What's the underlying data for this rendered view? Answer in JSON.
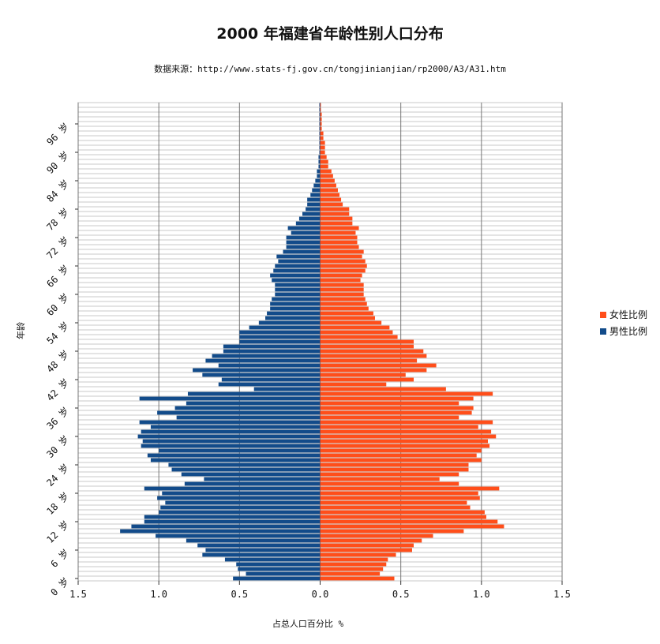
{
  "chart_data": {
    "type": "bar",
    "orientation": "horizontal",
    "title": "2000 年福建省年龄性别人口分布",
    "subtitle": "数据来源：http://www.stats-fj.gov.cn/tongjinianjian/rp2000/A3/A31.htm",
    "xlabel": "占总人口百分比 %",
    "ylabel": "年龄",
    "xlim": [
      -1.5,
      1.5
    ],
    "x_ticks": [
      "1.5",
      "1.0",
      "0.5",
      "0.0",
      "0.5",
      "1.0",
      "1.5"
    ],
    "y_ticks": [
      "0 岁",
      "6 岁",
      "12 岁",
      "18 岁",
      "24 岁",
      "30 岁",
      "36 岁",
      "42 岁",
      "48 岁",
      "54 岁",
      "60 岁",
      "66 岁",
      "72 岁",
      "78 岁",
      "84 岁",
      "90 岁",
      "96 岁"
    ],
    "ages": [
      0,
      1,
      2,
      3,
      4,
      5,
      6,
      7,
      8,
      9,
      10,
      11,
      12,
      13,
      14,
      15,
      16,
      17,
      18,
      19,
      20,
      21,
      22,
      23,
      24,
      25,
      26,
      27,
      28,
      29,
      30,
      31,
      32,
      33,
      34,
      35,
      36,
      37,
      38,
      39,
      40,
      41,
      42,
      43,
      44,
      45,
      46,
      47,
      48,
      49,
      50,
      51,
      52,
      53,
      54,
      55,
      56,
      57,
      58,
      59,
      60,
      61,
      62,
      63,
      64,
      65,
      66,
      67,
      68,
      69,
      70,
      71,
      72,
      73,
      74,
      75,
      76,
      77,
      78,
      79,
      80,
      81,
      82,
      83,
      84,
      85,
      86,
      87,
      88,
      89,
      90,
      91,
      92,
      93,
      94,
      95,
      96,
      97,
      98,
      99,
      100
    ],
    "series": [
      {
        "name": "女性比例",
        "color": "#ff4e1a",
        "values": [
          0.46,
          0.37,
          0.39,
          0.41,
          0.42,
          0.47,
          0.57,
          0.58,
          0.63,
          0.7,
          0.89,
          1.14,
          1.1,
          1.03,
          1.02,
          0.93,
          0.91,
          0.99,
          0.98,
          1.11,
          0.86,
          0.74,
          0.86,
          0.92,
          0.92,
          1.0,
          0.97,
          1.0,
          1.05,
          1.04,
          1.09,
          1.06,
          0.98,
          1.07,
          0.86,
          0.94,
          0.95,
          0.86,
          0.95,
          1.07,
          0.78,
          0.41,
          0.58,
          0.53,
          0.66,
          0.72,
          0.6,
          0.66,
          0.64,
          0.58,
          0.58,
          0.48,
          0.45,
          0.43,
          0.38,
          0.34,
          0.33,
          0.3,
          0.29,
          0.28,
          0.27,
          0.27,
          0.27,
          0.25,
          0.26,
          0.28,
          0.29,
          0.28,
          0.26,
          0.27,
          0.24,
          0.23,
          0.23,
          0.22,
          0.24,
          0.2,
          0.2,
          0.18,
          0.18,
          0.14,
          0.13,
          0.12,
          0.11,
          0.1,
          0.09,
          0.08,
          0.07,
          0.05,
          0.05,
          0.04,
          0.03,
          0.03,
          0.03,
          0.02,
          0.02,
          0.01,
          0.01,
          0.01,
          0.01,
          0.005,
          0.005
        ]
      },
      {
        "name": "男性比例",
        "color": "#124b8a",
        "values": [
          0.54,
          0.46,
          0.51,
          0.52,
          0.59,
          0.73,
          0.71,
          0.76,
          0.83,
          1.02,
          1.24,
          1.17,
          1.09,
          1.09,
          1.0,
          0.99,
          0.96,
          1.01,
          0.98,
          1.09,
          0.84,
          0.72,
          0.86,
          0.92,
          0.94,
          1.05,
          1.07,
          1.0,
          1.11,
          1.1,
          1.13,
          1.11,
          1.05,
          1.12,
          0.89,
          1.01,
          0.9,
          0.83,
          1.12,
          0.82,
          0.41,
          0.63,
          0.61,
          0.73,
          0.79,
          0.63,
          0.71,
          0.67,
          0.6,
          0.6,
          0.5,
          0.5,
          0.5,
          0.44,
          0.38,
          0.34,
          0.33,
          0.31,
          0.31,
          0.3,
          0.28,
          0.28,
          0.28,
          0.3,
          0.31,
          0.29,
          0.28,
          0.26,
          0.27,
          0.23,
          0.21,
          0.21,
          0.21,
          0.18,
          0.2,
          0.15,
          0.13,
          0.11,
          0.09,
          0.08,
          0.08,
          0.06,
          0.05,
          0.04,
          0.03,
          0.02,
          0.02,
          0.01,
          0.01,
          0.01,
          0.005,
          0.005,
          0.005,
          0.005,
          0.005,
          0.005,
          0.005,
          0.005,
          0.005,
          0.005,
          0.005
        ]
      }
    ],
    "grid": true,
    "legend_position": "right"
  }
}
